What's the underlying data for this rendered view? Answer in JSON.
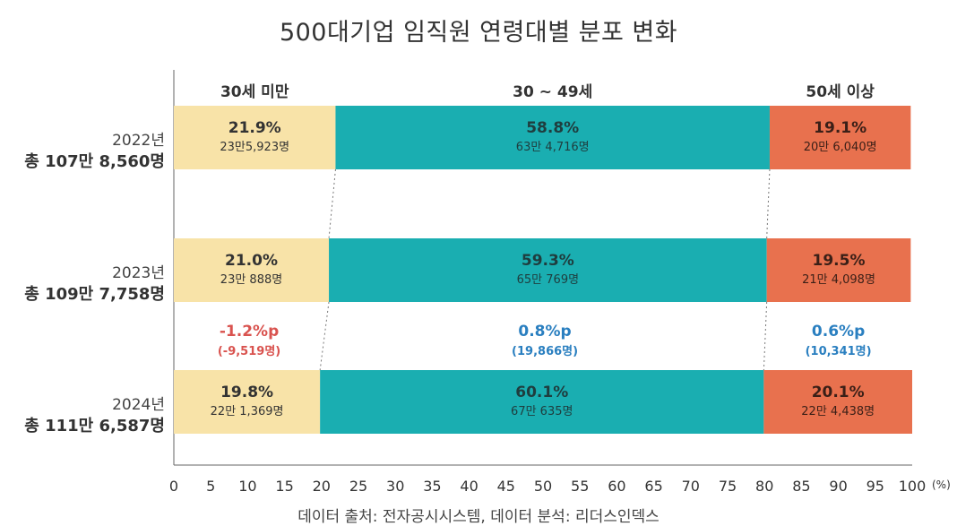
{
  "title": "500대기업 임직원 연령대별 분포 변화",
  "source": "데이터 출처: 전자공시시스템, 데이터 분석: 리더스인덱스",
  "chart_data": {
    "type": "bar",
    "stacked": true,
    "orientation": "horizontal",
    "xlim": [
      0,
      100
    ],
    "x_ticks": [
      0,
      5,
      10,
      15,
      20,
      25,
      30,
      35,
      40,
      45,
      50,
      55,
      60,
      65,
      70,
      75,
      80,
      85,
      90,
      95,
      100
    ],
    "x_unit": "(%)",
    "categories": [
      "30세 미만",
      "30 ~ 49세",
      "50세 이상"
    ],
    "colors": [
      "#f8e3a8",
      "#1aaeb1",
      "#e8714e"
    ],
    "rows": [
      {
        "year": "2022년",
        "total": "총 107만 8,560명",
        "percents": [
          21.9,
          58.8,
          19.1
        ],
        "percent_labels": [
          "21.9%",
          "58.8%",
          "19.1%"
        ],
        "counts": [
          "23만5,923명",
          "63만 4,716명",
          "20만 6,040명"
        ]
      },
      {
        "year": "2023년",
        "total": "총 109만 7,758명",
        "percents": [
          21.0,
          59.3,
          19.5
        ],
        "percent_labels": [
          "21.0%",
          "59.3%",
          "19.5%"
        ],
        "counts": [
          "23만 888명",
          "65만 769명",
          "21만 4,098명"
        ]
      },
      {
        "year": "2024년",
        "total": "총 111만 6,587명",
        "percents": [
          19.8,
          60.1,
          20.1
        ],
        "percent_labels": [
          "19.8%",
          "60.1%",
          "20.1%"
        ],
        "counts": [
          "22만 1,369명",
          "67만 635명",
          "22만 4,438명"
        ]
      }
    ],
    "changes": [
      {
        "value": "-1.2%p",
        "count": "(-9,519명)",
        "color": "#d9534f"
      },
      {
        "value": "0.8%p",
        "count": "(19,866명)",
        "color": "#2a7fc0"
      },
      {
        "value": "0.6%p",
        "count": "(10,341명)",
        "color": "#2a7fc0"
      }
    ]
  }
}
